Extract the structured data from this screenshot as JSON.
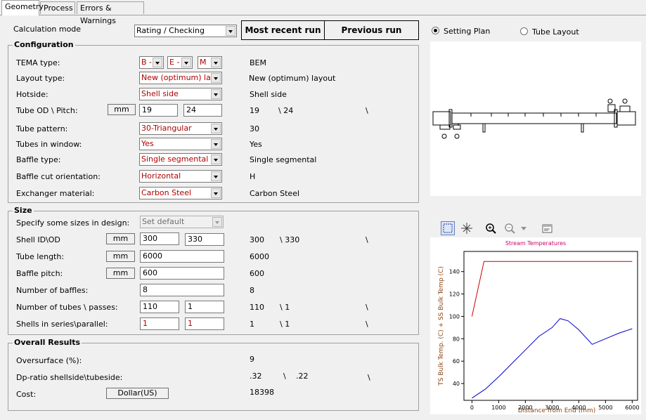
{
  "tabs": [
    "Geometry",
    "Process",
    "Errors & Warnings"
  ],
  "calc_mode": {
    "label": "Calculation mode",
    "value": "Rating / Checking"
  },
  "run_buttons": {
    "recent": "Most recent run",
    "previous": "Previous run"
  },
  "configuration": {
    "title": "Configuration",
    "tema": {
      "label": "TEMA type:",
      "front": "B -",
      "shell": "E -",
      "rear": "M",
      "result": "BEM"
    },
    "layout_type": {
      "label": "Layout type:",
      "value": "New (optimum) layout",
      "result": "New (optimum) layout"
    },
    "hotside": {
      "label": "Hotside:",
      "value": "Shell side",
      "result": "Shell side"
    },
    "tube_od_pitch": {
      "label": "Tube OD \\ Pitch:",
      "unit": "mm",
      "od": "19",
      "pitch": "24",
      "result_od": "19",
      "result_pitch": "\\ 24",
      "result_sep": "\\"
    },
    "tube_pattern": {
      "label": "Tube pattern:",
      "value": "30-Triangular",
      "result": "30"
    },
    "tubes_in_window": {
      "label": "Tubes in window:",
      "value": "Yes",
      "result": "Yes"
    },
    "baffle_type": {
      "label": "Baffle type:",
      "value": "Single segmental",
      "result": "Single segmental"
    },
    "baffle_cut": {
      "label": "Baffle cut orientation:",
      "value": "Horizontal",
      "result": "H"
    },
    "material": {
      "label": "Exchanger material:",
      "value": "Carbon Steel",
      "result": "Carbon Steel"
    }
  },
  "size": {
    "title": "Size",
    "specify": {
      "label": "Specify some sizes in design:",
      "value": "Set default"
    },
    "shell": {
      "label": "Shell ID\\OD",
      "unit": "mm",
      "id": "300",
      "od": "330",
      "result_id": "300",
      "result_od": "\\ 330",
      "result_sep": "\\"
    },
    "tube_length": {
      "label": "Tube length:",
      "unit": "mm",
      "value": "6000",
      "result": "6000"
    },
    "baffle_pitch": {
      "label": "Baffle pitch:",
      "unit": "mm",
      "value": "600",
      "result": "600"
    },
    "num_baffles": {
      "label": "Number of baffles:",
      "value": "8",
      "result": "8"
    },
    "num_tubes": {
      "label": "Number of tubes \\ passes:",
      "tubes": "110",
      "passes": "1",
      "result_tubes": "110",
      "result_passes": "\\ 1",
      "result_sep": "\\"
    },
    "shells": {
      "label": "Shells in series\\parallel:",
      "series": "1",
      "parallel": "1",
      "result_series": "1",
      "result_parallel": "\\ 1",
      "result_sep": "\\"
    }
  },
  "overall": {
    "title": "Overall Results",
    "oversurface": {
      "label": "Oversurface (%):",
      "value": "9"
    },
    "dp_ratio": {
      "label": "Dp-ratio shellside\\tubeside:",
      "shell": ".32",
      "sep": "\\",
      "tube": ".22",
      "sep2": "\\"
    },
    "cost": {
      "label": "Cost:",
      "unit": "Dollar(US)",
      "value": "18398"
    }
  },
  "view_options": {
    "setting_plan": "Setting Plan",
    "tube_layout": "Tube Layout",
    "selected": "setting_plan"
  },
  "toolbar_icons": [
    "select-box-icon",
    "crosshair-icon",
    "zoom-in-icon",
    "zoom-out-icon",
    "dropdown-arrow-icon",
    "properties-icon"
  ],
  "colors": {
    "label_red": "#b00000",
    "ts_series": "#cc0000",
    "ss_series": "#0000cc",
    "chart_title": "#cc0066",
    "axis_label": "#8b4513"
  },
  "chart_data": {
    "type": "line",
    "title": "Stream Temperatures",
    "xlabel": "Distance from End (mm)",
    "ylabel": "TS Bulk Temp. (C) + SS Bulk Temp (C)",
    "xlim": [
      -300,
      6200
    ],
    "ylim": [
      25,
      158
    ],
    "xticks": [
      0,
      1000,
      2000,
      3000,
      4000,
      5000,
      6000
    ],
    "yticks": [
      40,
      60,
      80,
      100,
      120,
      140
    ],
    "series": [
      {
        "color": "#cc0000",
        "x": [
          0,
          450,
          6000
        ],
        "y": [
          100,
          149,
          149
        ]
      },
      {
        "color": "#0000cc",
        "x": [
          0,
          500,
          1000,
          1500,
          2000,
          2500,
          3000,
          3300,
          3600,
          4000,
          4500,
          5000,
          5500,
          6000
        ],
        "y": [
          27,
          35,
          46,
          58,
          70,
          82,
          90,
          98,
          96,
          88,
          75,
          80,
          85,
          89
        ]
      }
    ]
  }
}
